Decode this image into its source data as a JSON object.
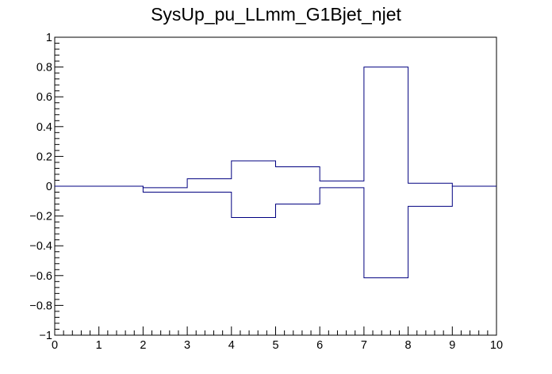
{
  "chart_data": {
    "type": "line",
    "title": "SysUp_pu_LLmm_G1Bjet_njet",
    "xlabel": "",
    "ylabel": "",
    "xlim": [
      0,
      10
    ],
    "ylim": [
      -1,
      1
    ],
    "x_ticks": [
      "0",
      "1",
      "2",
      "3",
      "4",
      "5",
      "6",
      "7",
      "8",
      "9",
      "10"
    ],
    "y_ticks": [
      "−1",
      "−0.8",
      "−0.6",
      "−0.4",
      "−0.2",
      "0",
      "0.2",
      "0.4",
      "0.6",
      "0.8",
      "1"
    ],
    "line_color": "#000080",
    "bin_edges": [
      0,
      1,
      2,
      3,
      4,
      5,
      6,
      7,
      8,
      9,
      10
    ],
    "series": [
      {
        "values": [
          0,
          0,
          -0.01,
          0.05,
          0.17,
          0.13,
          0.035,
          0.8,
          0.02,
          0
        ]
      },
      {
        "values": [
          0,
          0,
          -0.04,
          -0.04,
          -0.21,
          -0.12,
          -0.01,
          -0.615,
          -0.135,
          0
        ]
      }
    ]
  }
}
